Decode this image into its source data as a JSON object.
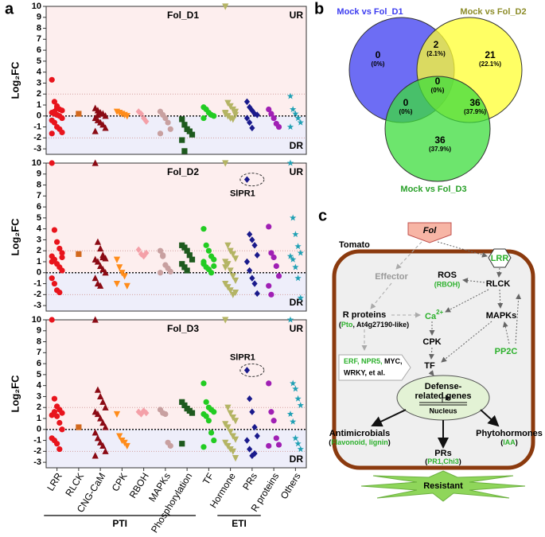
{
  "panel_labels": [
    "a",
    "b",
    "c"
  ],
  "strip_axes": {
    "y_label": "Log₂FC",
    "ylim": [
      -3.5,
      10
    ],
    "yticks": [
      -3,
      -2,
      -1,
      0,
      1,
      2,
      3,
      4,
      5,
      6,
      7,
      8,
      9,
      10
    ],
    "threshold_lines": [
      -2,
      2
    ],
    "up_label": "UR",
    "down_label": "DR",
    "categories": [
      "LRR",
      "RLCK",
      "CNG-CaM",
      "CPK",
      "RBOH",
      "MAPKs",
      "Phosphorylation",
      "TF",
      "Hormone",
      "PRs",
      "R proteins",
      "Others"
    ],
    "colors": [
      "#e8141c",
      "#d2691e",
      "#8b0a14",
      "#ff8c1a",
      "#f4a0a8",
      "#c8a0a0",
      "#1e5a1e",
      "#22cc22",
      "#b4b464",
      "#1a1a8c",
      "#a020b4",
      "#20a0b4"
    ],
    "markers": [
      "circle",
      "square",
      "triangle",
      "triangle-down",
      "diamond",
      "circle",
      "square",
      "circle",
      "triangle-down",
      "diamond",
      "circle",
      "star"
    ],
    "groups": [
      {
        "label": "PTI",
        "from": "LRR",
        "to": "Phosphorylation"
      },
      {
        "label": "ETI",
        "from": "Hormone",
        "to": "PRs"
      }
    ]
  },
  "chart_data": [
    {
      "type": "strip",
      "title": "Fol_D1",
      "values": [
        [
          3.3,
          1.3,
          0.9,
          0.6,
          0.5,
          0.3,
          0.2,
          0.1,
          0,
          -0.2,
          -0.4,
          -0.6,
          -1,
          -1.2,
          -1.5,
          -1.6,
          0.4,
          0.7
        ],
        [
          0.2
        ],
        [
          0.7,
          0.5,
          0.3,
          0.2,
          0,
          -0.2,
          -0.4,
          -0.6,
          -0.8,
          -1.1,
          -1.4,
          0.1
        ],
        [
          0.4,
          0.3,
          0.2,
          0.1,
          0
        ],
        [
          0.4,
          0.2,
          -0.2,
          -0.5
        ],
        [
          0.4,
          0.1,
          -0.2,
          -0.6,
          -1.2,
          -1.6
        ],
        [
          -0.3,
          -0.8,
          -1.2,
          -1.4,
          -1.7,
          -2.2,
          -3.2
        ],
        [
          0.8,
          0.6,
          0.3,
          0.1,
          0,
          -0.2
        ],
        [
          10,
          1.2,
          0.9,
          0.6,
          0.4,
          0.2,
          0,
          -0.2,
          -0.3,
          0.1,
          0.3
        ],
        [
          1.3,
          0.8,
          0.5,
          0.2,
          0.1,
          -0.2,
          -0.6,
          -1.1
        ],
        [
          0.6,
          0.2,
          -0.2,
          -0.7,
          -1.0
        ],
        [
          1.8,
          0.6,
          0.2,
          -0.2,
          -0.6,
          -1.0
        ]
      ]
    },
    {
      "type": "strip",
      "title": "Fol_D2",
      "annotation": {
        "text": "SlPR1",
        "category": 9,
        "value": 8.5
      },
      "values": [
        [
          10,
          3.9,
          2.8,
          2.2,
          1.8,
          1.5,
          1.2,
          0.8,
          0.5,
          0.2,
          -0.5,
          -1,
          -1.6,
          -1.8,
          1.4,
          1.0
        ],
        [
          1.7
        ],
        [
          10,
          2.8,
          2.2,
          1.6,
          1.3,
          1.2,
          1.0,
          0.6,
          0.3,
          0,
          -0.5,
          -1.0,
          -1.2,
          1.4
        ],
        [
          1.2,
          0.5,
          0,
          -0.3,
          -1.2,
          -1.0
        ],
        [
          2.1,
          1.7,
          1.5,
          1.8
        ],
        [
          2.0,
          1.5,
          0.7,
          0.4,
          0.1,
          0,
          1.6
        ],
        [
          2.5,
          2.3,
          2.0,
          1.6,
          1.2,
          0.8,
          0.5,
          0.2
        ],
        [
          4.0,
          2.5,
          2.0,
          1.5,
          1.2,
          0.8,
          0.5,
          0.3,
          0,
          0.6,
          1.0
        ],
        [
          10,
          2.5,
          2.0,
          1.7,
          1.3,
          1.0,
          0.8,
          0.2,
          -0.3,
          -0.7,
          -1.0,
          -1.3,
          -1.6,
          -2.0,
          -1.8,
          0.5
        ],
        [
          8.5,
          3.5,
          3.0,
          2.5,
          1.6,
          1.0,
          0.2,
          -0.5,
          -1.0,
          -1.9
        ],
        [
          4.2,
          1.8,
          1.4,
          0.6,
          -0.3,
          -1.2,
          -2.0
        ],
        [
          10,
          5.0,
          3.5,
          2.4,
          1.8,
          1.5,
          1.2,
          0.5,
          -0.5,
          -2.3
        ]
      ]
    },
    {
      "type": "strip",
      "title": "Fol_D3",
      "annotation": {
        "text": "SlPR1",
        "category": 9,
        "value": 5.4
      },
      "values": [
        [
          10,
          2.8,
          2.1,
          1.8,
          1.5,
          1.3,
          1.6,
          1.2,
          0.6,
          0,
          -0.8,
          -1.0,
          -1.3,
          -1.8
        ],
        [
          0.2
        ],
        [
          10,
          3.6,
          3.0,
          2.5,
          2.0,
          1.6,
          1.4,
          1.0,
          0.6,
          0.2,
          -0.3,
          -0.8,
          -1.2,
          -1.5,
          -2.0,
          -2.4
        ],
        [
          1.4,
          -0.6,
          -1.0,
          -1.2,
          -1.5
        ],
        [
          1.6,
          1.4,
          1.7,
          1.5
        ],
        [
          1.8,
          1.5,
          1.4,
          -1.2,
          -1.5
        ],
        [
          2.5,
          2.2,
          1.9,
          1.7,
          1.5,
          -1.3
        ],
        [
          4.2,
          2.5,
          2.0,
          1.8,
          1.6,
          1.4,
          1.2,
          0.8,
          -0.3,
          -1.0,
          -1.6
        ],
        [
          10,
          2.0,
          1.5,
          1.1,
          0.8,
          0.5,
          0.2,
          -0.2,
          -0.6,
          -0.9,
          -1.2,
          -1.5,
          -1.8,
          -2.0,
          -2.6
        ],
        [
          5.4,
          2.8,
          1.6,
          0.2,
          -0.6,
          -1.0,
          -1.8,
          -2.4,
          -2.2
        ],
        [
          4.2,
          1.6,
          0.8,
          -0.8,
          -1.4,
          -1.5
        ],
        [
          10,
          4.2,
          3.7,
          2.8,
          2.2,
          1.4,
          0.7,
          -0.8,
          -1.3,
          -1.8
        ]
      ]
    }
  ],
  "venn": {
    "sets": [
      {
        "name": "Mock vs Fol_D1",
        "color": "#3c3cf0",
        "text_color": "#3c3cf0"
      },
      {
        "name": "Mock vs Fol_D2",
        "color": "#ffff30",
        "text_color": "#8c8c28"
      },
      {
        "name": "Mock vs Fol_D3",
        "color": "#3cdc3c",
        "text_color": "#28a028"
      }
    ],
    "regions": [
      {
        "sets": "D1",
        "count": 0,
        "label": "(0%)"
      },
      {
        "sets": "D1 D2",
        "count": 2,
        "label": "(2.1%)"
      },
      {
        "sets": "D2",
        "count": 21,
        "label": "(22.1%)"
      },
      {
        "sets": "D1 D2 D3",
        "count": 0,
        "label": "(0%)"
      },
      {
        "sets": "D1 D3",
        "count": 0,
        "label": "(0%)"
      },
      {
        "sets": "D2 D3",
        "count": 36,
        "label": "(37.9%)"
      },
      {
        "sets": "D3",
        "count": 36,
        "label": "(37.9%)"
      }
    ]
  },
  "diagram": {
    "pathogen": "Fol",
    "host": "Tomato",
    "lrr": "LRR",
    "effector": "Effector",
    "ros": "ROS",
    "rboh": "(RBOH)",
    "rlck": "RLCK",
    "r_proteins": "R proteins",
    "r_detail": [
      "(",
      "Pto",
      ", At4g27190-like)"
    ],
    "ca": "Ca",
    "ca_sup": "2+",
    "mapks": "MAPKs",
    "cpk": "CPK",
    "pp2c": "PP2C",
    "tf_list": [
      "ERF, NPR5,",
      " MYC,",
      "WRKY, et al."
    ],
    "tf": "TF",
    "genes": [
      "Defense-",
      "related genes"
    ],
    "nucleus": "Nucleus",
    "antimicrobials": "Antimicrobials",
    "antimicrobial_detail": [
      "(",
      "Flavonoid,  lignin",
      ")"
    ],
    "phytohormones": "Phytohormones",
    "phyto_detail": [
      "(",
      "IAA",
      ")"
    ],
    "prs": "PRs",
    "prs_detail": [
      "(",
      "PR1,Chi3",
      ")"
    ],
    "outcome": "Resistant"
  }
}
